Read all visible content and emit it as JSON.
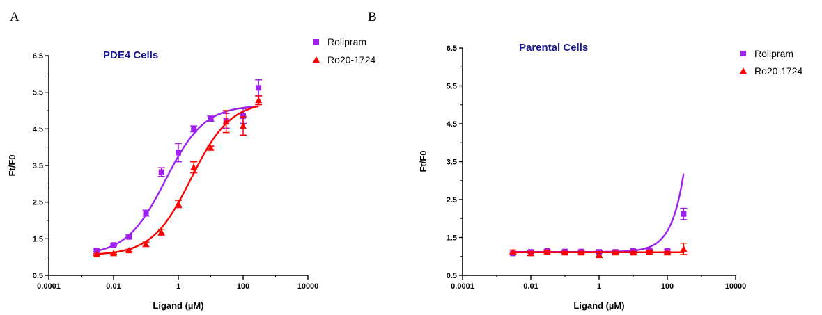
{
  "figure": {
    "panel_labels": [
      "A",
      "B"
    ]
  },
  "colors": {
    "rolipram": "#a020f0",
    "ro20_1724": "#ff0000",
    "title": "#1a1a8c"
  },
  "chart_data": [
    {
      "type": "scatter",
      "panel": "A",
      "title": "PDE4 Cells",
      "xlabel": "Ligand (µM)",
      "ylabel": "Ft/F0",
      "xscale": "log",
      "xlim": [
        0.0001,
        10000
      ],
      "ylim": [
        0.5,
        6.5
      ],
      "xticks": [
        0.0001,
        0.01,
        1,
        100,
        10000
      ],
      "xtick_labels": [
        "0.0001",
        "0.01",
        "1",
        "100",
        "10000"
      ],
      "yticks": [
        0.5,
        1.5,
        2.5,
        3.5,
        4.5,
        5.5,
        6.5
      ],
      "ytick_labels": [
        "0.5",
        "1.5",
        "2.5",
        "3.5",
        "4.5",
        "5.5",
        "6.5"
      ],
      "grid": false,
      "legend_position": "top-right",
      "series": [
        {
          "name": "Rolipram",
          "marker": "square",
          "color": "#a020f0",
          "x": [
            0.003,
            0.01,
            0.03,
            0.1,
            0.3,
            1,
            3,
            10,
            30,
            100,
            300
          ],
          "y": [
            1.18,
            1.33,
            1.55,
            2.2,
            3.32,
            3.85,
            4.5,
            4.78,
            4.72,
            4.85,
            5.62
          ],
          "err": [
            0.03,
            0.03,
            0.05,
            0.08,
            0.12,
            0.25,
            0.08,
            0.07,
            0.2,
            0.2,
            0.22
          ],
          "fit": {
            "bottom": 1.05,
            "top": 5.15,
            "ec50": 0.4,
            "hill": 0.72
          }
        },
        {
          "name": "Ro20-1724",
          "marker": "triangle",
          "color": "#ff0000",
          "x": [
            0.003,
            0.01,
            0.03,
            0.1,
            0.3,
            1,
            3,
            10,
            30,
            100,
            300
          ],
          "y": [
            1.07,
            1.1,
            1.18,
            1.35,
            1.68,
            2.45,
            3.45,
            3.98,
            4.7,
            4.58,
            5.28
          ],
          "err": [
            0.02,
            0.02,
            0.03,
            0.06,
            0.08,
            0.1,
            0.15,
            0.05,
            0.3,
            0.25,
            0.12
          ],
          "fit": {
            "bottom": 1.05,
            "top": 5.25,
            "ec50": 2.5,
            "hill": 0.72
          }
        }
      ]
    },
    {
      "type": "scatter",
      "panel": "B",
      "title": "Parental Cells",
      "xlabel": "Ligand (µM)",
      "ylabel": "Ft/F0",
      "xscale": "log",
      "xlim": [
        0.0001,
        10000
      ],
      "ylim": [
        0.5,
        6.5
      ],
      "xticks": [
        0.0001,
        0.01,
        1,
        100,
        10000
      ],
      "xtick_labels": [
        "0.0001",
        "0.01",
        "1",
        "100",
        "10000"
      ],
      "yticks": [
        0.5,
        1.5,
        2.5,
        3.5,
        4.5,
        5.5,
        6.5
      ],
      "ytick_labels": [
        "0.5",
        "1.5",
        "2.5",
        "3.5",
        "4.5",
        "5.5",
        "6.5"
      ],
      "grid": false,
      "legend_position": "top-right",
      "series": [
        {
          "name": "Rolipram",
          "marker": "square",
          "color": "#a020f0",
          "x": [
            0.003,
            0.01,
            0.03,
            0.1,
            0.3,
            1,
            3,
            10,
            30,
            100,
            300
          ],
          "y": [
            1.08,
            1.12,
            1.15,
            1.13,
            1.13,
            1.12,
            1.12,
            1.15,
            1.16,
            1.15,
            2.12
          ],
          "err": [
            0.03,
            0.03,
            0.03,
            0.03,
            0.03,
            0.03,
            0.03,
            0.03,
            0.03,
            0.03,
            0.15
          ],
          "fit": {
            "kind": "flat-rise",
            "base": 1.12,
            "amp": 0.0022,
            "rate": 1.2
          }
        },
        {
          "name": "Ro20-1724",
          "marker": "triangle",
          "color": "#ff0000",
          "x": [
            0.003,
            0.01,
            0.03,
            0.1,
            0.3,
            1,
            3,
            10,
            30,
            100,
            300
          ],
          "y": [
            1.12,
            1.08,
            1.12,
            1.1,
            1.1,
            1.05,
            1.1,
            1.1,
            1.12,
            1.1,
            1.2
          ],
          "err": [
            0.05,
            0.05,
            0.03,
            0.03,
            0.03,
            0.08,
            0.03,
            0.03,
            0.03,
            0.03,
            0.15
          ],
          "fit": {
            "kind": "flat",
            "base": 1.11
          }
        }
      ]
    }
  ]
}
